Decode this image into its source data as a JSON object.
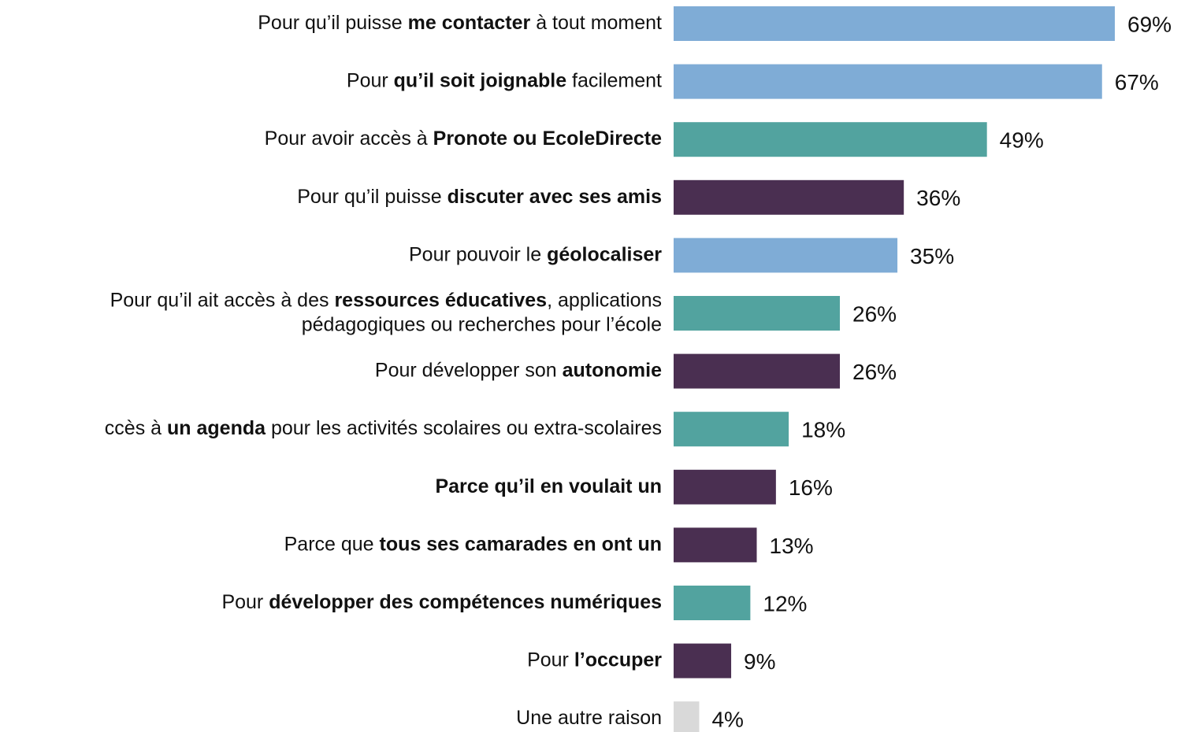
{
  "chart_data": {
    "type": "bar",
    "orientation": "horizontal",
    "categories": [
      [
        {
          "text": "Pour qu’il puisse "
        },
        {
          "text": "me contacter",
          "bold": true
        },
        {
          "text": " à tout moment"
        }
      ],
      [
        {
          "text": "Pour "
        },
        {
          "text": "qu’il soit joignable",
          "bold": true
        },
        {
          "text": " facilement"
        }
      ],
      [
        {
          "text": "Pour avoir accès à "
        },
        {
          "text": "Pronote ou EcoleDirecte",
          "bold": true
        }
      ],
      [
        {
          "text": "Pour qu’il puisse "
        },
        {
          "text": "discuter avec ses amis",
          "bold": true
        }
      ],
      [
        {
          "text": "Pour pouvoir le "
        },
        {
          "text": "géolocaliser",
          "bold": true
        }
      ],
      [
        {
          "text": "Pour qu’il ait accès à des "
        },
        {
          "text": "ressources éducatives",
          "bold": true
        },
        {
          "text": ", applications"
        },
        {
          "text": "pédagogiques ou recherches pour l’école",
          "newline": true
        }
      ],
      [
        {
          "text": "Pour développer son "
        },
        {
          "text": "autonomie",
          "bold": true
        }
      ],
      [
        {
          "text": "ccès à "
        },
        {
          "text": "un agenda",
          "bold": true
        },
        {
          "text": " pour les activités scolaires ou extra-scolaires"
        }
      ],
      [
        {
          "text": "Parce qu’il en voulait un",
          "bold": true
        }
      ],
      [
        {
          "text": "Parce que "
        },
        {
          "text": "tous ses camarades en ont un",
          "bold": true
        }
      ],
      [
        {
          "text": "Pour "
        },
        {
          "text": "développer des compétences numériques",
          "bold": true
        }
      ],
      [
        {
          "text": "Pour "
        },
        {
          "text": "l’occuper",
          "bold": true
        }
      ],
      [
        {
          "text": "Une autre raison"
        }
      ]
    ],
    "values": [
      69,
      67,
      49,
      36,
      35,
      26,
      26,
      18,
      16,
      13,
      12,
      9,
      4
    ],
    "value_labels": [
      "69%",
      "67%",
      "49%",
      "36%",
      "35%",
      "26%",
      "26%",
      "18%",
      "16%",
      "13%",
      "12%",
      "9%",
      "4%"
    ],
    "colors": [
      "#7facd6",
      "#7facd6",
      "#52a39f",
      "#4a2f51",
      "#7facd6",
      "#52a39f",
      "#4a2f51",
      "#52a39f",
      "#4a2f51",
      "#4a2f51",
      "#52a39f",
      "#4a2f51",
      "#d9d9d9"
    ]
  }
}
